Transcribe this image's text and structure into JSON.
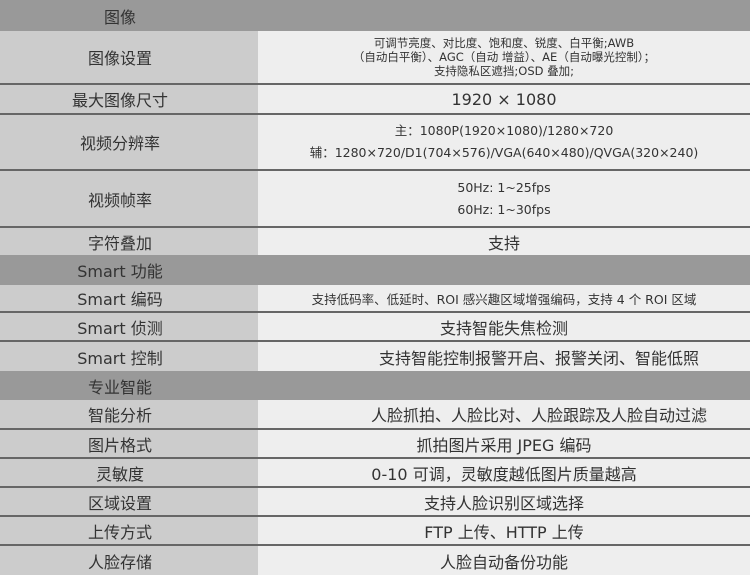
{
  "rows": [
    {
      "type": "section",
      "label": "图像"
    },
    {
      "label": "图像设置",
      "value": [
        "可调节亮度、对比度、饱和度、锐度、白平衡;AWB",
        "（自动白平衡）、AGC（自动 增益）、AE（自动曝光控制）；",
        "支持隐私区遮挡;OSD 叠加;"
      ]
    },
    {
      "label": "最大图像尺寸",
      "value": [
        "1920 × 1080"
      ]
    },
    {
      "label": "视频分辨率",
      "value": [
        "主：1080P(1920×1080)/1280×720",
        "辅：1280×720/D1(704×576)/VGA(640×480)/QVGA(320×240)"
      ]
    },
    {
      "label": "视频帧率",
      "value": [
        "50Hz: 1~25fps",
        "60Hz: 1~30fps"
      ]
    },
    {
      "label": "字符叠加",
      "value": [
        "支持"
      ]
    },
    {
      "type": "section",
      "label": "Smart 功能"
    },
    {
      "label": "Smart 编码",
      "value": [
        "支持低码率、低延时、ROI 感兴趣区域增强编码，支持 4 个 ROI 区域"
      ]
    },
    {
      "label": "Smart 侦测",
      "value": [
        "支持智能失焦检测"
      ]
    },
    {
      "label": "Smart 控制",
      "value": [
        "支持智能控制报警开启、报警关闭、智能低照"
      ]
    },
    {
      "type": "section",
      "label": "专业智能"
    },
    {
      "label": "智能分析",
      "value": [
        "人脸抓拍、人脸比对、人脸跟踪及人脸自动过滤"
      ]
    },
    {
      "label": "图片格式",
      "value": [
        "抓拍图片采用 JPEG 编码"
      ]
    },
    {
      "label": "灵敏度",
      "value": [
        "0-10 可调，灵敏度越低图片质量越高"
      ]
    },
    {
      "label": "区域设置",
      "value": [
        "支持人脸识别区域选择"
      ]
    },
    {
      "label": "上传方式",
      "value": [
        "FTP 上传、HTTP 上传"
      ]
    },
    {
      "label": "人脸存储",
      "value": [
        "人脸自动备份功能"
      ]
    }
  ]
}
